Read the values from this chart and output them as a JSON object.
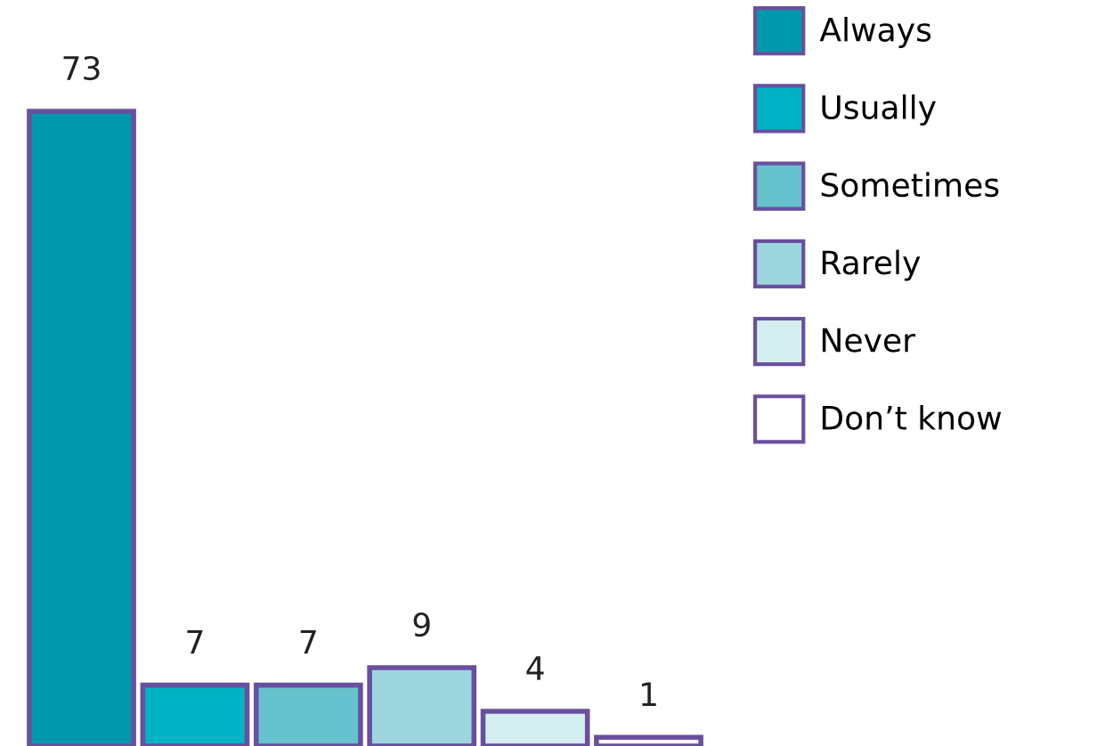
{
  "chart_data": {
    "type": "bar",
    "categories": [
      null
    ],
    "series": [
      {
        "name": "Always",
        "color": "#0099ac",
        "values": [
          73
        ]
      },
      {
        "name": "Usually",
        "color": "#00b3c4",
        "values": [
          7
        ]
      },
      {
        "name": "Sometimes",
        "color": "#66c2cc",
        "values": [
          7
        ]
      },
      {
        "name": "Rarely",
        "color": "#9dd6dd",
        "values": [
          9
        ]
      },
      {
        "name": "Never",
        "color": "#d5eef0",
        "values": [
          4
        ]
      },
      {
        "name": "Don’t know",
        "color": "#ffffff",
        "values": [
          1
        ]
      }
    ],
    "data_labels": true,
    "legend": "right"
  }
}
